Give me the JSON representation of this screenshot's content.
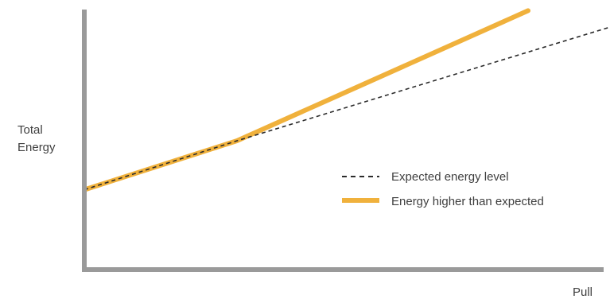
{
  "chart_data": {
    "type": "line",
    "title": "",
    "xlabel": "Pull",
    "ylabel": [
      "Total",
      "Energy"
    ],
    "grid": false,
    "legend_placement": "center-right",
    "xlim": [
      0,
      10
    ],
    "ylim": [
      0,
      10
    ],
    "series": [
      {
        "name": "Expected energy level",
        "style": "dashed",
        "color": "#2b2b2b",
        "x": [
          0,
          3.2,
          11
        ],
        "y": [
          3.1,
          5.0,
          9.4
        ]
      },
      {
        "name": "Energy higher than expected",
        "style": "solid",
        "color": "#f0b13c",
        "x": [
          0,
          3.2,
          9.3
        ],
        "y": [
          3.1,
          5.0,
          10.05
        ]
      }
    ],
    "axis_color": "#9a9a9a"
  }
}
